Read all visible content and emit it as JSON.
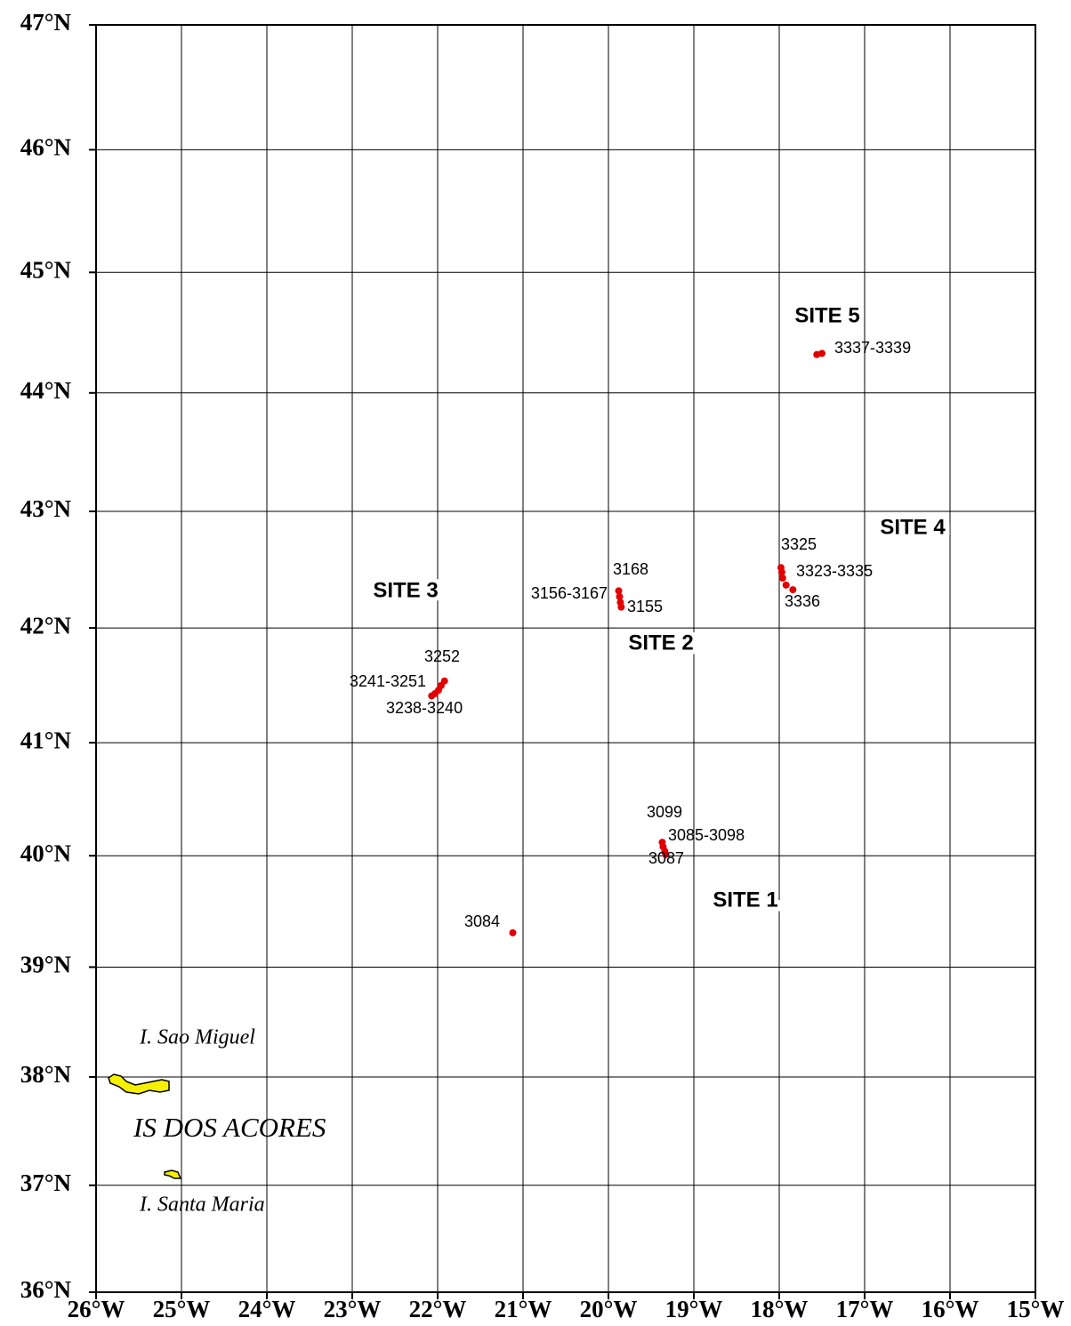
{
  "chart_data": {
    "type": "map",
    "projection": "mercator",
    "xlim": [
      -26,
      -15
    ],
    "ylim": [
      36,
      47
    ],
    "grid": true,
    "xticks": [
      {
        "value": -26,
        "label": "26°W"
      },
      {
        "value": -25,
        "label": "25°W"
      },
      {
        "value": -24,
        "label": "24°W"
      },
      {
        "value": -23,
        "label": "23°W"
      },
      {
        "value": -22,
        "label": "22°W"
      },
      {
        "value": -21,
        "label": "21°W"
      },
      {
        "value": -20,
        "label": "20°W"
      },
      {
        "value": -19,
        "label": "19°W"
      },
      {
        "value": -18,
        "label": "18°W"
      },
      {
        "value": -17,
        "label": "17°W"
      },
      {
        "value": -16,
        "label": "16°W"
      },
      {
        "value": -15,
        "label": "15°W"
      }
    ],
    "yticks": [
      {
        "value": 36,
        "label": "36°N"
      },
      {
        "value": 37,
        "label": "37°N"
      },
      {
        "value": 38,
        "label": "38°N"
      },
      {
        "value": 39,
        "label": "39°N"
      },
      {
        "value": 40,
        "label": "40°N"
      },
      {
        "value": 41,
        "label": "41°N"
      },
      {
        "value": 42,
        "label": "42°N"
      },
      {
        "value": 43,
        "label": "43°N"
      },
      {
        "value": 44,
        "label": "44°N"
      },
      {
        "value": 45,
        "label": "45°N"
      },
      {
        "value": 46,
        "label": "46°N"
      },
      {
        "value": 47,
        "label": "47°N"
      }
    ],
    "stations": {
      "color": "#e00000",
      "x": [
        -21.12,
        -19.37,
        -19.36,
        -19.34,
        -19.33,
        -19.88,
        -19.87,
        -19.86,
        -19.85,
        -22.07,
        -22.03,
        -21.99,
        -21.96,
        -21.92,
        -17.98,
        -17.97,
        -17.96,
        -17.92,
        -17.84,
        -17.56,
        -17.5
      ],
      "y": [
        39.31,
        40.12,
        40.08,
        40.04,
        40.01,
        42.32,
        42.27,
        42.22,
        42.18,
        41.41,
        41.43,
        41.46,
        41.5,
        41.54,
        42.52,
        42.48,
        42.43,
        42.37,
        42.33,
        44.32,
        44.33
      ]
    },
    "station_labels": [
      "3337-3339",
      "3325",
      "3323-3335",
      "3336",
      "3168",
      "3156-3167",
      "3155",
      "3252",
      "3241-3251",
      "3238-3240",
      "3099",
      "3085-3098",
      "3087",
      "3084"
    ],
    "site_labels": [
      "SITE 5",
      "SITE 4",
      "SITE 3",
      "SITE 2",
      "SITE 1"
    ],
    "island_labels": [
      "I. Sao Miguel",
      "IS DOS ACORES",
      "I. Santa Maria"
    ]
  }
}
